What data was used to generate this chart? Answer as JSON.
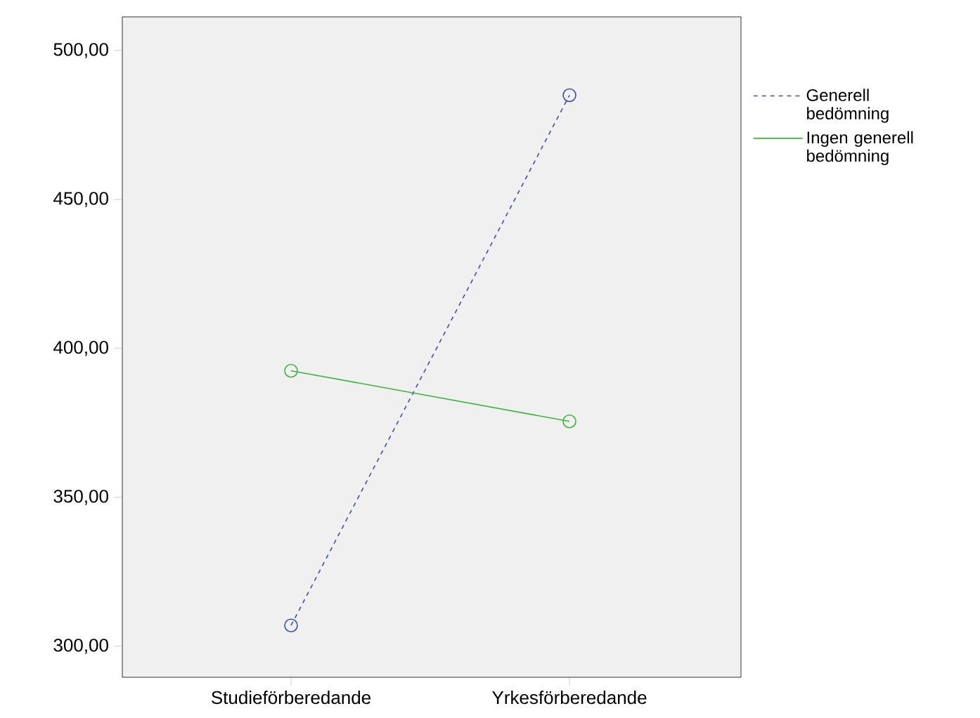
{
  "chart_data": {
    "type": "line",
    "categories": [
      "Studieförberedande",
      "Yrkesförberedande"
    ],
    "series": [
      {
        "name": "Generell bedömning",
        "color": "#3f4fa8",
        "line_style": "dashed",
        "values": [
          307,
          485
        ]
      },
      {
        "name": "Ingen generell bedömning",
        "color": "#3db53d",
        "line_style": "solid",
        "values": [
          392.5,
          375.5
        ]
      }
    ],
    "ylim": [
      289.6,
      511.3
    ],
    "yticks": [
      {
        "value": 300,
        "label": "300,00"
      },
      {
        "value": 350,
        "label": "350,00"
      },
      {
        "value": 400,
        "label": "400,00"
      },
      {
        "value": 450,
        "label": "450,00"
      },
      {
        "value": 500,
        "label": "500,00"
      }
    ],
    "marker": "circle",
    "legend": "right",
    "grid": false
  }
}
